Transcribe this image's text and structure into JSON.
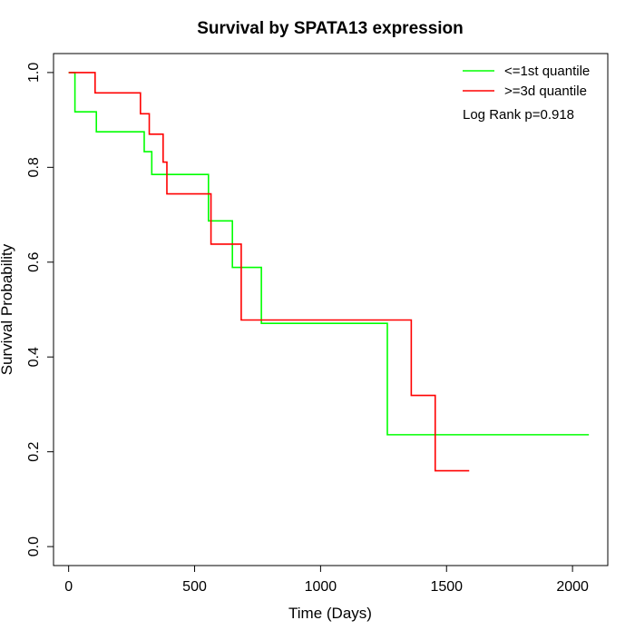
{
  "chart_data": {
    "type": "line",
    "title": "Survival by SPATA13 expression",
    "xlabel": "Time (Days)",
    "ylabel": "Survival Probability",
    "xlim": [
      -60,
      2140
    ],
    "ylim": [
      -0.04,
      1.04
    ],
    "x_ticks": [
      0,
      500,
      1000,
      1500,
      2000
    ],
    "x_tick_labels": [
      "0",
      "500",
      "1000",
      "1500",
      "2000"
    ],
    "y_ticks": [
      0.0,
      0.2,
      0.4,
      0.6,
      0.8,
      1.0
    ],
    "y_tick_labels": [
      "0.0",
      "0.2",
      "0.4",
      "0.6",
      "0.8",
      "1.0"
    ],
    "grid": false,
    "legend_position": "top-right",
    "annotation": "Log Rank p=0.918",
    "series": [
      {
        "name": "<=1st quantile",
        "color": "#00ff00",
        "step": true,
        "x": [
          0,
          25,
          110,
          300,
          330,
          555,
          650,
          765,
          1265,
          2065
        ],
        "y": [
          1.0,
          0.917,
          0.875,
          0.833,
          0.785,
          0.687,
          0.589,
          0.471,
          0.236,
          0.236
        ]
      },
      {
        "name": ">=3d quantile",
        "color": "#ff0000",
        "step": true,
        "x": [
          0,
          105,
          285,
          320,
          375,
          390,
          565,
          685,
          1360,
          1455,
          1590
        ],
        "y": [
          1.0,
          0.957,
          0.913,
          0.87,
          0.811,
          0.744,
          0.638,
          0.478,
          0.319,
          0.16,
          0.16
        ]
      }
    ]
  }
}
